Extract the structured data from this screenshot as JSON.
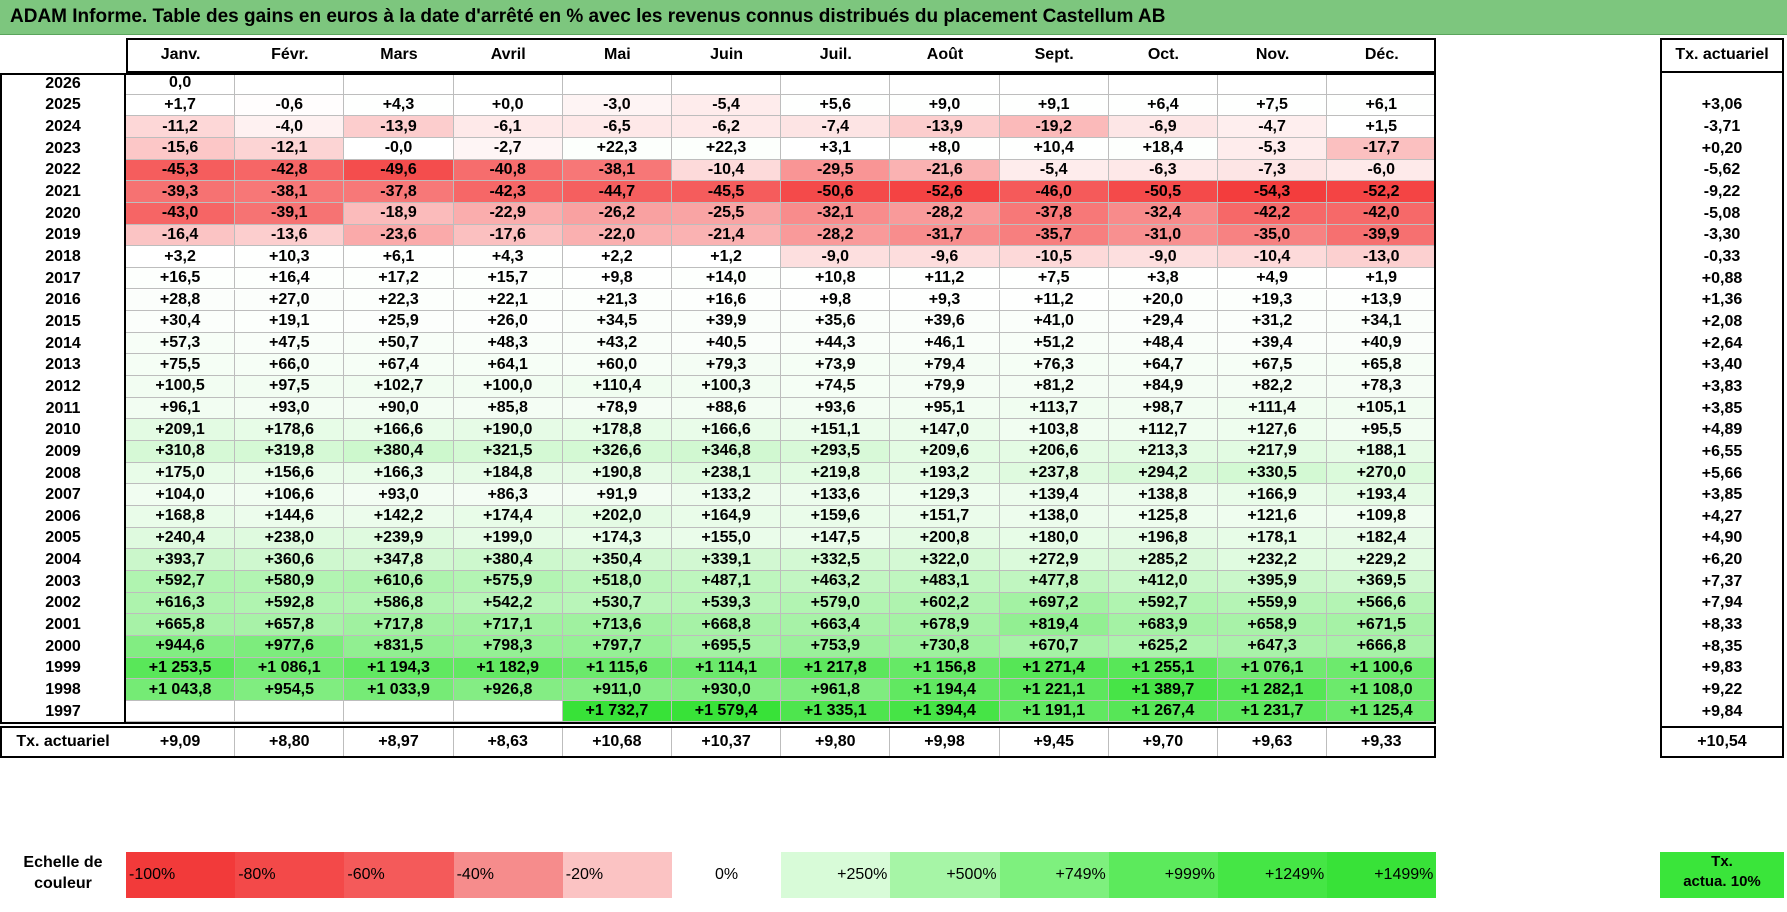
{
  "title": "ADAM Informe. Table des gains en euros à la date d'arrêté en % avec les revenus connus distribués du placement Castellum AB",
  "chart_data": {
    "type": "table",
    "columns": [
      "Janv.",
      "Févr.",
      "Mars",
      "Avril",
      "Mai",
      "Juin",
      "Juil.",
      "Août",
      "Sept.",
      "Oct.",
      "Nov.",
      "Déc."
    ],
    "tx_header": "Tx. actuariel",
    "rows": [
      {
        "year": "2026",
        "values": [
          "0,0",
          "",
          "",
          "",
          "",
          "",
          "",
          "",
          "",
          "",
          "",
          ""
        ],
        "tx": ""
      },
      {
        "year": "2025",
        "values": [
          "+1,7",
          "-0,6",
          "+4,3",
          "+0,0",
          "-3,0",
          "-5,4",
          "+5,6",
          "+9,0",
          "+9,1",
          "+6,4",
          "+7,5",
          "+6,1"
        ],
        "tx": "+3,06"
      },
      {
        "year": "2024",
        "values": [
          "-11,2",
          "-4,0",
          "-13,9",
          "-6,1",
          "-6,5",
          "-6,2",
          "-7,4",
          "-13,9",
          "-19,2",
          "-6,9",
          "-4,7",
          "+1,5"
        ],
        "tx": "-3,71"
      },
      {
        "year": "2023",
        "values": [
          "-15,6",
          "-12,1",
          "-0,0",
          "-2,7",
          "+22,3",
          "+22,3",
          "+3,1",
          "+8,0",
          "+10,4",
          "+18,4",
          "-5,3",
          "-17,7"
        ],
        "tx": "+0,20"
      },
      {
        "year": "2022",
        "values": [
          "-45,3",
          "-42,8",
          "-49,6",
          "-40,8",
          "-38,1",
          "-10,4",
          "-29,5",
          "-21,6",
          "-5,4",
          "-6,3",
          "-7,3",
          "-6,0"
        ],
        "tx": "-5,62"
      },
      {
        "year": "2021",
        "values": [
          "-39,3",
          "-38,1",
          "-37,8",
          "-42,3",
          "-44,7",
          "-45,5",
          "-50,6",
          "-52,6",
          "-46,0",
          "-50,5",
          "-54,3",
          "-52,2"
        ],
        "tx": "-9,22"
      },
      {
        "year": "2020",
        "values": [
          "-43,0",
          "-39,1",
          "-18,9",
          "-22,9",
          "-26,2",
          "-25,5",
          "-32,1",
          "-28,2",
          "-37,8",
          "-32,4",
          "-42,2",
          "-42,0"
        ],
        "tx": "-5,08"
      },
      {
        "year": "2019",
        "values": [
          "-16,4",
          "-13,6",
          "-23,6",
          "-17,6",
          "-22,0",
          "-21,4",
          "-28,2",
          "-31,7",
          "-35,7",
          "-31,0",
          "-35,0",
          "-39,9"
        ],
        "tx": "-3,30"
      },
      {
        "year": "2018",
        "values": [
          "+3,2",
          "+10,3",
          "+6,1",
          "+4,3",
          "+2,2",
          "+1,2",
          "-9,0",
          "-9,6",
          "-10,5",
          "-9,0",
          "-10,4",
          "-13,0"
        ],
        "tx": "-0,33"
      },
      {
        "year": "2017",
        "values": [
          "+16,5",
          "+16,4",
          "+17,2",
          "+15,7",
          "+9,8",
          "+14,0",
          "+10,8",
          "+11,2",
          "+7,5",
          "+3,8",
          "+4,9",
          "+1,9"
        ],
        "tx": "+0,88"
      },
      {
        "year": "2016",
        "values": [
          "+28,8",
          "+27,0",
          "+22,3",
          "+22,1",
          "+21,3",
          "+16,6",
          "+9,8",
          "+9,3",
          "+11,2",
          "+20,0",
          "+19,3",
          "+13,9"
        ],
        "tx": "+1,36"
      },
      {
        "year": "2015",
        "values": [
          "+30,4",
          "+19,1",
          "+25,9",
          "+26,0",
          "+34,5",
          "+39,9",
          "+35,6",
          "+39,6",
          "+41,0",
          "+29,4",
          "+31,2",
          "+34,1"
        ],
        "tx": "+2,08"
      },
      {
        "year": "2014",
        "values": [
          "+57,3",
          "+47,5",
          "+50,7",
          "+48,3",
          "+43,2",
          "+40,5",
          "+44,3",
          "+46,1",
          "+51,2",
          "+48,4",
          "+39,4",
          "+40,9"
        ],
        "tx": "+2,64"
      },
      {
        "year": "2013",
        "values": [
          "+75,5",
          "+66,0",
          "+67,4",
          "+64,1",
          "+60,0",
          "+79,3",
          "+73,9",
          "+79,4",
          "+76,3",
          "+64,7",
          "+67,5",
          "+65,8"
        ],
        "tx": "+3,40"
      },
      {
        "year": "2012",
        "values": [
          "+100,5",
          "+97,5",
          "+102,7",
          "+100,0",
          "+110,4",
          "+100,3",
          "+74,5",
          "+79,9",
          "+81,2",
          "+84,9",
          "+82,2",
          "+78,3"
        ],
        "tx": "+3,83"
      },
      {
        "year": "2011",
        "values": [
          "+96,1",
          "+93,0",
          "+90,0",
          "+85,8",
          "+78,9",
          "+88,6",
          "+93,6",
          "+95,1",
          "+113,7",
          "+98,7",
          "+111,4",
          "+105,1"
        ],
        "tx": "+3,85"
      },
      {
        "year": "2010",
        "values": [
          "+209,1",
          "+178,6",
          "+166,6",
          "+190,0",
          "+178,8",
          "+166,6",
          "+151,1",
          "+147,0",
          "+103,8",
          "+112,7",
          "+127,6",
          "+95,5"
        ],
        "tx": "+4,89"
      },
      {
        "year": "2009",
        "values": [
          "+310,8",
          "+319,8",
          "+380,4",
          "+321,5",
          "+326,6",
          "+346,8",
          "+293,5",
          "+209,6",
          "+206,6",
          "+213,3",
          "+217,9",
          "+188,1"
        ],
        "tx": "+6,55"
      },
      {
        "year": "2008",
        "values": [
          "+175,0",
          "+156,6",
          "+166,3",
          "+184,8",
          "+190,8",
          "+238,1",
          "+219,8",
          "+193,2",
          "+237,8",
          "+294,2",
          "+330,5",
          "+270,0"
        ],
        "tx": "+5,66"
      },
      {
        "year": "2007",
        "values": [
          "+104,0",
          "+106,6",
          "+93,0",
          "+86,3",
          "+91,9",
          "+133,2",
          "+133,6",
          "+129,3",
          "+139,4",
          "+138,8",
          "+166,9",
          "+193,4"
        ],
        "tx": "+3,85"
      },
      {
        "year": "2006",
        "values": [
          "+168,8",
          "+144,6",
          "+142,2",
          "+174,4",
          "+202,0",
          "+164,9",
          "+159,6",
          "+151,7",
          "+138,0",
          "+125,8",
          "+121,6",
          "+109,8"
        ],
        "tx": "+4,27"
      },
      {
        "year": "2005",
        "values": [
          "+240,4",
          "+238,0",
          "+239,9",
          "+199,0",
          "+174,3",
          "+155,0",
          "+147,5",
          "+200,8",
          "+180,0",
          "+196,8",
          "+178,1",
          "+182,4"
        ],
        "tx": "+4,90"
      },
      {
        "year": "2004",
        "values": [
          "+393,7",
          "+360,6",
          "+347,8",
          "+380,4",
          "+350,4",
          "+339,1",
          "+332,5",
          "+322,0",
          "+272,9",
          "+285,2",
          "+232,2",
          "+229,2"
        ],
        "tx": "+6,20"
      },
      {
        "year": "2003",
        "values": [
          "+592,7",
          "+580,9",
          "+610,6",
          "+575,9",
          "+518,0",
          "+487,1",
          "+463,2",
          "+483,1",
          "+477,8",
          "+412,0",
          "+395,9",
          "+369,5"
        ],
        "tx": "+7,37"
      },
      {
        "year": "2002",
        "values": [
          "+616,3",
          "+592,8",
          "+586,8",
          "+542,2",
          "+530,7",
          "+539,3",
          "+579,0",
          "+602,2",
          "+697,2",
          "+592,7",
          "+559,9",
          "+566,6"
        ],
        "tx": "+7,94"
      },
      {
        "year": "2001",
        "values": [
          "+665,8",
          "+657,8",
          "+717,8",
          "+717,1",
          "+713,6",
          "+668,8",
          "+663,4",
          "+678,9",
          "+819,4",
          "+683,9",
          "+658,9",
          "+671,5"
        ],
        "tx": "+8,33"
      },
      {
        "year": "2000",
        "values": [
          "+944,6",
          "+977,6",
          "+831,5",
          "+798,3",
          "+797,7",
          "+695,5",
          "+753,9",
          "+730,8",
          "+670,7",
          "+625,2",
          "+647,3",
          "+666,8"
        ],
        "tx": "+8,35"
      },
      {
        "year": "1999",
        "values": [
          "+1 253,5",
          "+1 086,1",
          "+1 194,3",
          "+1 182,9",
          "+1 115,6",
          "+1 114,1",
          "+1 217,8",
          "+1 156,8",
          "+1 271,4",
          "+1 255,1",
          "+1 076,1",
          "+1 100,6"
        ],
        "tx": "+9,83"
      },
      {
        "year": "1998",
        "values": [
          "+1 043,8",
          "+954,5",
          "+1 033,9",
          "+926,8",
          "+911,0",
          "+930,0",
          "+961,8",
          "+1 194,4",
          "+1 221,1",
          "+1 389,7",
          "+1 282,1",
          "+1 108,0"
        ],
        "tx": "+9,22"
      },
      {
        "year": "1997",
        "values": [
          "",
          "",
          "",
          "",
          "+1 732,7",
          "+1 579,4",
          "+1 335,1",
          "+1 394,4",
          "+1 191,1",
          "+1 267,4",
          "+1 231,7",
          "+1 125,4"
        ],
        "tx": "+9,84"
      }
    ],
    "footer": {
      "label": "Tx. actuariel",
      "values": [
        "+9,09",
        "+8,80",
        "+8,97",
        "+8,63",
        "+10,68",
        "+10,37",
        "+9,80",
        "+9,98",
        "+9,45",
        "+9,70",
        "+9,63",
        "+9,33"
      ],
      "tx": "+10,54"
    },
    "legend": {
      "label_line1": "Echelle de",
      "label_line2": "couleur",
      "items": [
        {
          "text": "-100%",
          "color": "#f23a3a",
          "align": "left"
        },
        {
          "text": "-80%",
          "color": "#f34949",
          "align": "left"
        },
        {
          "text": "-60%",
          "color": "#f45a5a",
          "align": "left"
        },
        {
          "text": "-40%",
          "color": "#f68c8c",
          "align": "left"
        },
        {
          "text": "-20%",
          "color": "#fbc3c3",
          "align": "left"
        },
        {
          "text": "0%",
          "color": "#ffffff",
          "align": "center"
        },
        {
          "text": "+250%",
          "color": "#d8fbd8",
          "align": "right"
        },
        {
          "text": "+500%",
          "color": "#a6f5a6",
          "align": "right"
        },
        {
          "text": "+749%",
          "color": "#7ef07e",
          "align": "right"
        },
        {
          "text": "+999%",
          "color": "#5cea5c",
          "align": "right"
        },
        {
          "text": "+1249%",
          "color": "#45e645",
          "align": "right"
        },
        {
          "text": "+1499%",
          "color": "#38e238",
          "align": "right"
        }
      ],
      "tx_line1": "Tx.",
      "tx_line2": "actua. 10%"
    }
  }
}
